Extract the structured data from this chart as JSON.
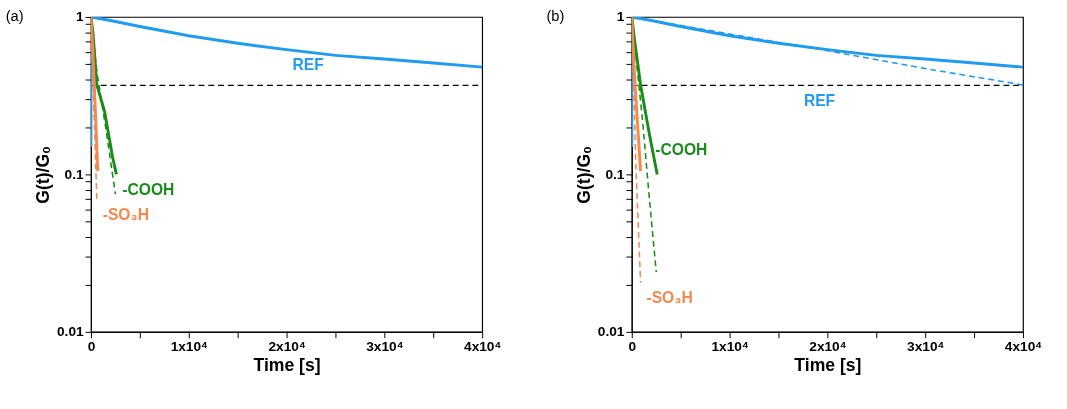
{
  "chart_data": [
    {
      "type": "line",
      "title": "(a)",
      "xlabel": "Time [s]",
      "ylabel": "G(t)/G₀",
      "log": "y",
      "grid": false,
      "xlim": [
        0,
        40000
      ],
      "ylim": [
        0.01,
        1
      ],
      "xticks": [
        0,
        {
          "value": 5000,
          "label": null
        },
        {
          "value": 10000,
          "label": "1x10⁴"
        },
        {
          "value": 15000,
          "label": null
        },
        {
          "value": 20000,
          "label": "2x10⁴"
        },
        {
          "value": 25000,
          "label": null
        },
        {
          "value": 30000,
          "label": "3x10⁴"
        },
        {
          "value": 35000,
          "label": null
        },
        {
          "value": 40000,
          "label": "4x10⁴"
        }
      ],
      "yticks": [
        0.01,
        {
          "value": 0.02,
          "label": null
        },
        {
          "value": 0.03,
          "label": null
        },
        {
          "value": 0.04,
          "label": null
        },
        {
          "value": 0.05,
          "label": null
        },
        {
          "value": 0.06,
          "label": null
        },
        {
          "value": 0.07,
          "label": null
        },
        {
          "value": 0.08,
          "label": null
        },
        {
          "value": 0.09,
          "label": null
        },
        0.1,
        {
          "value": 0.2,
          "label": null
        },
        {
          "value": 0.3,
          "label": null
        },
        {
          "value": 0.4,
          "label": null
        },
        {
          "value": 0.5,
          "label": null
        },
        {
          "value": 0.6,
          "label": null
        },
        {
          "value": 0.7,
          "label": null
        },
        {
          "value": 0.8,
          "label": null
        },
        {
          "value": 0.9,
          "label": null
        },
        1
      ],
      "ref_lines": [
        {
          "axis": "y",
          "value": 0.368,
          "color": "#000000",
          "line_style": "dashed"
        }
      ],
      "annotations": [
        {
          "text": "REF",
          "x": 20000,
          "y": 0.62
        },
        {
          "text": "-COOH",
          "x": 2600,
          "y": 0.1
        },
        {
          "text": "-SO₃H",
          "x": 600,
          "y": 0.069
        }
      ],
      "series": [
        {
          "color": "#1f9bf0",
          "line_style": "solid",
          "x": [
            0,
            0,
            2000,
            5000,
            10000,
            15000,
            20000,
            25000,
            30000,
            35000,
            40000
          ],
          "values": [
            0.15,
            1,
            0.95,
            0.87,
            0.76,
            0.68,
            0.62,
            0.57,
            0.54,
            0.51,
            0.48
          ]
        },
        {
          "color": "#1a8c1a",
          "line_style": "solid",
          "x": [
            0,
            200,
            600,
            1400,
            2200,
            2600
          ],
          "values": [
            1,
            0.8,
            0.37,
            0.25,
            0.13,
            0.1
          ]
        },
        {
          "color": "#1a8c1a",
          "line_style": "dashed",
          "x": [
            0,
            600,
            1500,
            2500
          ],
          "values": [
            1,
            0.45,
            0.2,
            0.075
          ]
        },
        {
          "color": "#f5884a",
          "line_style": "solid",
          "x": [
            0,
            200,
            400,
            700
          ],
          "values": [
            1,
            0.6,
            0.3,
            0.105
          ]
        },
        {
          "color": "#f5884a",
          "line_style": "dashed",
          "x": [
            0,
            600
          ],
          "values": [
            1,
            0.069
          ]
        }
      ]
    },
    {
      "type": "line",
      "title": "(b)",
      "xlabel": "Time [s]",
      "ylabel": "G(t)/G₀",
      "log": "y",
      "grid": false,
      "xlim": [
        0,
        40000
      ],
      "ylim": [
        0.01,
        1
      ],
      "xticks": [
        0,
        {
          "value": 5000,
          "label": null
        },
        {
          "value": 10000,
          "label": "1x10⁴"
        },
        {
          "value": 15000,
          "label": null
        },
        {
          "value": 20000,
          "label": "2x10⁴"
        },
        {
          "value": 25000,
          "label": null
        },
        {
          "value": 30000,
          "label": "3x10⁴"
        },
        {
          "value": 35000,
          "label": null
        },
        {
          "value": 40000,
          "label": "4x10⁴"
        }
      ],
      "yticks": [
        0.01,
        {
          "value": 0.02,
          "label": null
        },
        {
          "value": 0.03,
          "label": null
        },
        {
          "value": 0.04,
          "label": null
        },
        {
          "value": 0.05,
          "label": null
        },
        {
          "value": 0.06,
          "label": null
        },
        {
          "value": 0.07,
          "label": null
        },
        {
          "value": 0.08,
          "label": null
        },
        {
          "value": 0.09,
          "label": null
        },
        0.1,
        {
          "value": 0.2,
          "label": null
        },
        {
          "value": 0.3,
          "label": null
        },
        {
          "value": 0.4,
          "label": null
        },
        {
          "value": 0.5,
          "label": null
        },
        {
          "value": 0.6,
          "label": null
        },
        {
          "value": 0.7,
          "label": null
        },
        {
          "value": 0.8,
          "label": null
        },
        {
          "value": 0.9,
          "label": null
        },
        1
      ],
      "ref_lines": [
        {
          "axis": "y",
          "value": 0.368,
          "color": "#000000",
          "line_style": "dashed"
        }
      ],
      "annotations": [
        {
          "text": "REF",
          "x": 17000,
          "y": 0.368
        },
        {
          "text": "-COOH",
          "x": 1800,
          "y": 0.18
        },
        {
          "text": "-SO₃H",
          "x": 900,
          "y": 0.0205
        }
      ],
      "series": [
        {
          "color": "#1f9bf0",
          "line_style": "solid",
          "x": [
            0,
            0,
            2000,
            5000,
            10000,
            15000,
            20000,
            25000,
            30000,
            35000,
            40000
          ],
          "values": [
            0.15,
            1,
            0.95,
            0.87,
            0.76,
            0.68,
            0.62,
            0.57,
            0.54,
            0.51,
            0.48
          ]
        },
        {
          "color": "#1f9bf0",
          "line_style": "dashed",
          "x": [
            0,
            10000,
            20000,
            30000,
            40000
          ],
          "values": [
            1,
            0.78,
            0.61,
            0.47,
            0.37
          ]
        },
        {
          "color": "#1a8c1a",
          "line_style": "solid",
          "x": [
            0,
            300,
            900,
            1800,
            2600
          ],
          "values": [
            1,
            0.7,
            0.37,
            0.18,
            0.1
          ]
        },
        {
          "color": "#1a8c1a",
          "line_style": "dashed",
          "x": [
            0,
            1100,
            1800,
            2500
          ],
          "values": [
            1,
            0.22,
            0.07,
            0.024
          ]
        },
        {
          "color": "#f5884a",
          "line_style": "solid",
          "x": [
            0,
            300,
            900
          ],
          "values": [
            1,
            0.4,
            0.105
          ]
        },
        {
          "color": "#f5884a",
          "line_style": "dashed",
          "x": [
            0,
            400,
            900
          ],
          "values": [
            1,
            0.12,
            0.0205
          ]
        }
      ]
    }
  ]
}
